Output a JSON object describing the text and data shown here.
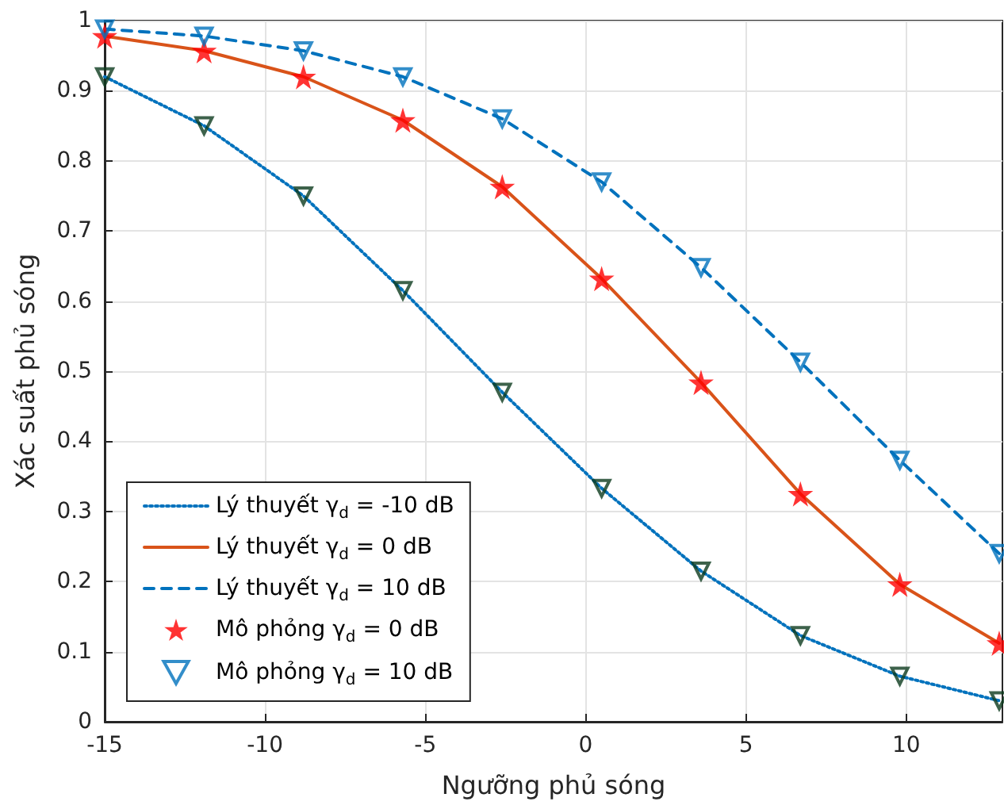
{
  "chart_data": {
    "type": "line",
    "xlabel": "Ngưỡng phủ sóng",
    "ylabel": "Xác suất phủ sóng",
    "x": [
      -15,
      -11.9,
      -8.8,
      -5.7,
      -2.6,
      0.5,
      3.6,
      6.7,
      9.8,
      12.9
    ],
    "xlim": [
      -15,
      13
    ],
    "xticks": [
      -15,
      -10,
      -5,
      0,
      5,
      10
    ],
    "ylim": [
      0,
      1
    ],
    "yticks": [
      0,
      0.1,
      0.2,
      0.3,
      0.4,
      0.5,
      0.6,
      0.7,
      0.8,
      0.9,
      1
    ],
    "grid": true,
    "legend": "bottom left",
    "series": [
      {
        "name": "Lý thuyết γ$_{d}$ = -10 dB",
        "color": "#0072bd",
        "line_style": "dotted",
        "marker": "none",
        "values": [
          0.92,
          0.85,
          0.75,
          0.615,
          0.47,
          0.333,
          0.215,
          0.123,
          0.065,
          0.03
        ]
      },
      {
        "name": "Lý thuyết γ$_{d}$ = 0 dB",
        "color": "#d95319",
        "line_style": "solid",
        "marker": "none",
        "values": [
          0.978,
          0.957,
          0.92,
          0.858,
          0.763,
          0.632,
          0.484,
          0.325,
          0.196,
          0.112
        ]
      },
      {
        "name": "Lý thuyết γ$_{d}$ = 10 dB",
        "color": "#0072bd",
        "line_style": "dashed",
        "marker": "none",
        "values": [
          0.988,
          0.978,
          0.957,
          0.92,
          0.86,
          0.77,
          0.648,
          0.513,
          0.373,
          0.24
        ]
      },
      {
        "name": "Mô phỏng γ$_{d}$ = 0 dB",
        "type": "scatter",
        "color": "#ff0000",
        "marker": "star",
        "values": [
          0.978,
          0.957,
          0.92,
          0.858,
          0.763,
          0.632,
          0.484,
          0.325,
          0.196,
          0.112
        ]
      },
      {
        "name": "Mô phỏng γ$_{d}$ = 10 dB",
        "type": "scatter",
        "color": "#0072bd",
        "marker": "triangle",
        "values": [
          0.988,
          0.978,
          0.957,
          0.92,
          0.86,
          0.77,
          0.648,
          0.513,
          0.373,
          0.24
        ]
      },
      {
        "type": "scatter",
        "color": "#0d3b1e",
        "marker": "triangle",
        "values": [
          0.92,
          0.85,
          0.75,
          0.615,
          0.47,
          0.333,
          0.215,
          0.123,
          0.065,
          0.03
        ]
      }
    ]
  }
}
